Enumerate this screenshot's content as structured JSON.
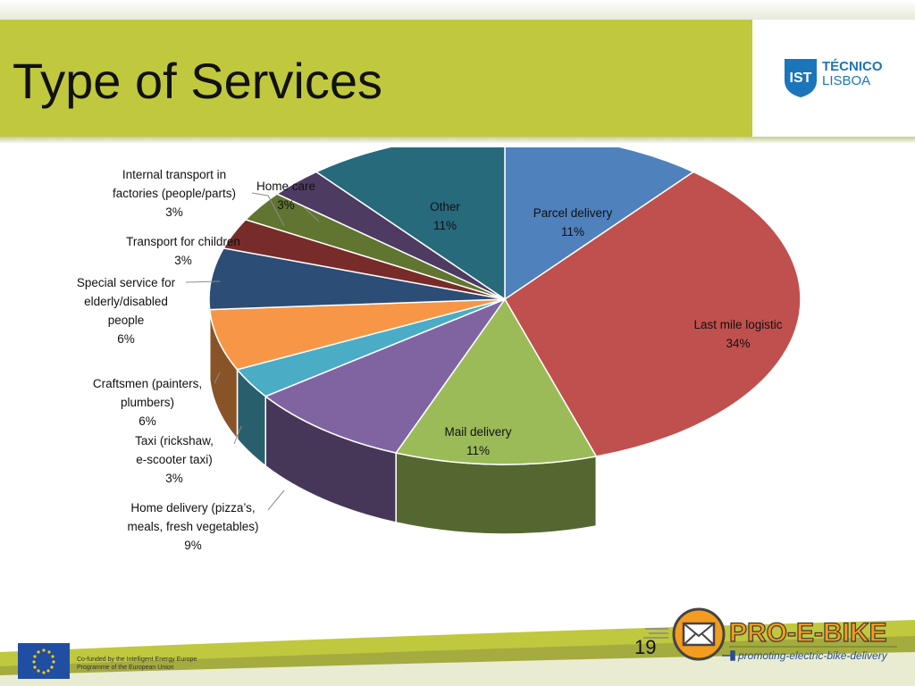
{
  "slide": {
    "title": "Type of Services",
    "page_number": "19"
  },
  "logos": {
    "institution_line1": "TÉCNICO",
    "institution_line2": "LISBOA",
    "brand_name": "PRO-E-BIKE",
    "brand_tagline": "promoting-electric-bike-delivery"
  },
  "footer": {
    "eu_text_line1": "Co-funded by the Intelligent Energy Europe",
    "eu_text_line2": "Programme of the European Union"
  },
  "colors": {
    "accent_band": "#c0c83e",
    "brand_orange": "#f39c1f"
  },
  "chart_data": {
    "type": "pie",
    "title": "",
    "slices": [
      {
        "name": "Parcel delivery",
        "value": 11,
        "display": "11%",
        "color": "#4f81bd",
        "label_lines": [
          "Parcel delivery",
          "11%"
        ]
      },
      {
        "name": "Last mile logistic",
        "value": 34,
        "display": "34%",
        "color": "#c0504d",
        "label_lines": [
          "Last mile logistic",
          "34%"
        ]
      },
      {
        "name": "Mail delivery",
        "value": 11,
        "display": "11%",
        "color": "#9bbb59",
        "label_lines": [
          "Mail delivery",
          "11%"
        ]
      },
      {
        "name": "Home delivery (pizza's, meals, fresh vegetables)",
        "value": 9,
        "display": "9%",
        "color": "#8064a2",
        "label_lines": [
          "Home delivery (pizza’s,",
          "meals, fresh vegetables)",
          "9%"
        ]
      },
      {
        "name": "Taxi (rickshaw, e-scooter taxi)",
        "value": 3,
        "display": "3%",
        "color": "#4bacc6",
        "label_lines": [
          "Taxi (rickshaw,",
          "e-scooter taxi)",
          "3%"
        ]
      },
      {
        "name": "Craftsmen (painters, plumbers)",
        "value": 6,
        "display": "6%",
        "color": "#f79646",
        "label_lines": [
          "Craftsmen (painters,",
          "plumbers)",
          "6%"
        ]
      },
      {
        "name": "Special service for elderly/disabled people",
        "value": 6,
        "display": "6%",
        "color": "#2c4d75",
        "label_lines": [
          "Special service for",
          "elderly/disabled",
          "people",
          "6%"
        ]
      },
      {
        "name": "Transport for children",
        "value": 3,
        "display": "3%",
        "color": "#772c2a",
        "label_lines": [
          "Transport for children",
          "3%"
        ]
      },
      {
        "name": "Internal transport in factories (people/parts)",
        "value": 3,
        "display": "3%",
        "color": "#5f7530",
        "label_lines": [
          "Internal transport in",
          "factories (people/parts)",
          "3%"
        ]
      },
      {
        "name": "Home care",
        "value": 3,
        "display": "3%",
        "color": "#4d3b62",
        "label_lines": [
          "Home care",
          "3%"
        ]
      },
      {
        "name": "Other",
        "value": 11,
        "display": "11%",
        "color": "#276a7c",
        "label_lines": [
          "Other",
          "11%"
        ]
      }
    ]
  }
}
